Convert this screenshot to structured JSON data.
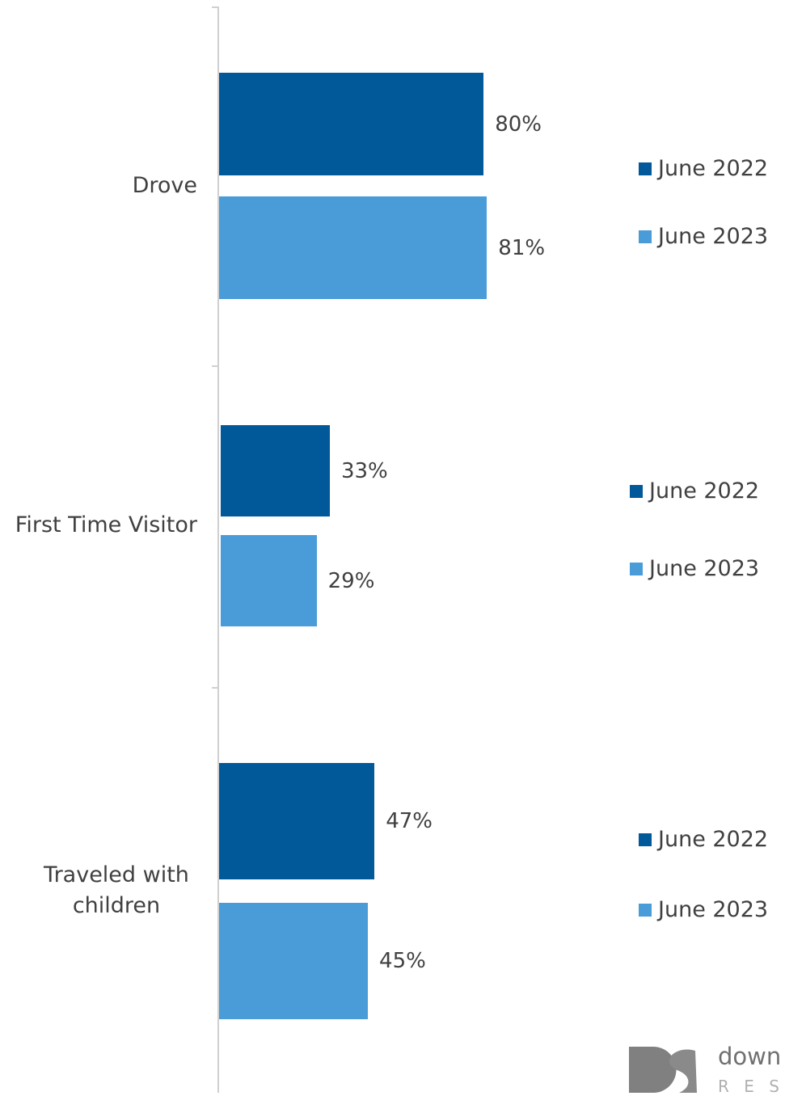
{
  "chart_data": [
    {
      "type": "bar",
      "orientation": "horizontal",
      "categories": [
        "Drove"
      ],
      "xlim": [
        0,
        100
      ],
      "series": [
        {
          "name": "June 2022",
          "color": "#02599a",
          "values": [
            80
          ],
          "value_labels": [
            "80%"
          ]
        },
        {
          "name": "June 2023",
          "color": "#4a9cd9",
          "values": [
            81
          ],
          "value_labels": [
            "81%"
          ]
        }
      ]
    },
    {
      "type": "bar",
      "orientation": "horizontal",
      "categories": [
        "First Time Visitor"
      ],
      "xlim": [
        0,
        100
      ],
      "series": [
        {
          "name": "June 2022",
          "color": "#02599a",
          "values": [
            33
          ],
          "value_labels": [
            "33%"
          ]
        },
        {
          "name": "June 2023",
          "color": "#4a9cd9",
          "values": [
            29
          ],
          "value_labels": [
            "29%"
          ]
        }
      ]
    },
    {
      "type": "bar",
      "orientation": "horizontal",
      "categories": [
        "Traveled with children"
      ],
      "xlim": [
        0,
        100
      ],
      "series": [
        {
          "name": "June 2022",
          "color": "#02599a",
          "values": [
            47
          ],
          "value_labels": [
            "47%"
          ]
        },
        {
          "name": "June 2023",
          "color": "#4a9cd9",
          "values": [
            45
          ],
          "value_labels": [
            "45%"
          ]
        }
      ]
    }
  ],
  "logo": {
    "text": "down",
    "subtext": "R E S"
  }
}
